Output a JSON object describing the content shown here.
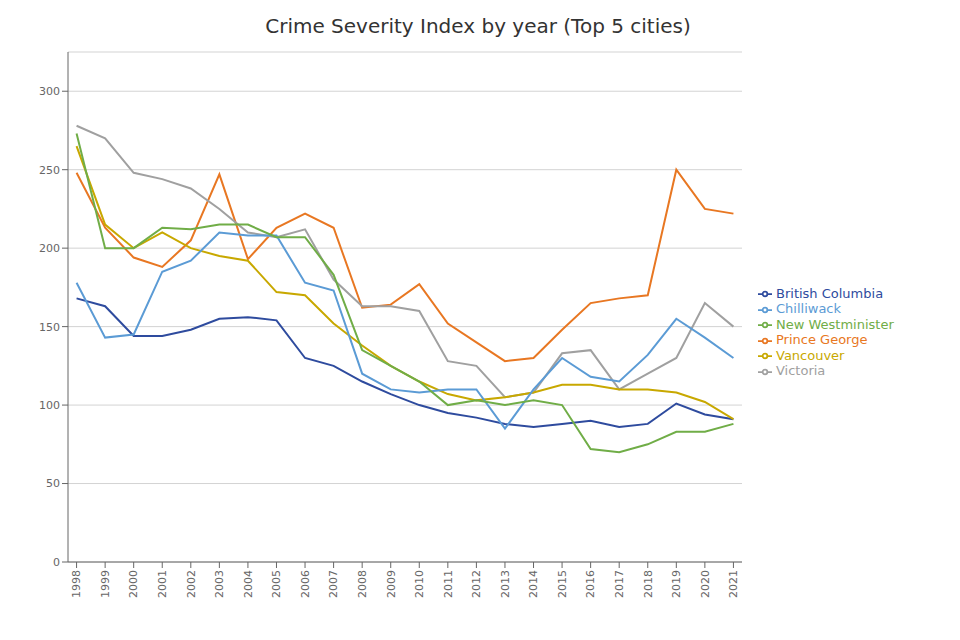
{
  "chart_data": {
    "type": "line",
    "title": "Crime Severity Index by year (Top 5 cities)",
    "x": [
      1998,
      1999,
      2000,
      2001,
      2002,
      2003,
      2004,
      2005,
      2006,
      2007,
      2008,
      2009,
      2010,
      2011,
      2012,
      2013,
      2014,
      2015,
      2016,
      2017,
      2018,
      2019,
      2020,
      2021
    ],
    "series": [
      {
        "name": "British Columbia",
        "color": "#2e4b9e",
        "values": [
          168,
          163,
          144,
          144,
          148,
          155,
          156,
          154,
          130,
          125,
          115,
          107,
          100,
          95,
          92,
          88,
          86,
          88,
          90,
          86,
          88,
          101,
          94,
          91
        ]
      },
      {
        "name": "Prince George",
        "color": "#e87722",
        "values": [
          248,
          213,
          194,
          188,
          205,
          247,
          193,
          213,
          222,
          213,
          162,
          164,
          177,
          152,
          140,
          128,
          130,
          148,
          165,
          168,
          170,
          250,
          225,
          222
        ]
      },
      {
        "name": "Victoria",
        "color": "#a0a0a0",
        "values": [
          278,
          270,
          248,
          244,
          238,
          225,
          210,
          207,
          212,
          180,
          163,
          163,
          160,
          128,
          125,
          105,
          108,
          133,
          135,
          110,
          120,
          130,
          165,
          150
        ]
      },
      {
        "name": "Vancouver",
        "color": "#c8a800",
        "values": [
          265,
          215,
          200,
          210,
          200,
          195,
          192,
          172,
          170,
          152,
          138,
          125,
          115,
          107,
          103,
          105,
          108,
          113,
          113,
          110,
          110,
          108,
          102,
          91
        ]
      },
      {
        "name": "Chilliwack",
        "color": "#5b9bd5",
        "values": [
          178,
          143,
          145,
          185,
          192,
          210,
          208,
          208,
          178,
          173,
          120,
          110,
          108,
          110,
          110,
          85,
          110,
          130,
          118,
          115,
          132,
          155,
          143,
          130
        ]
      },
      {
        "name": "New Westminister",
        "color": "#70ad47",
        "values": [
          273,
          200,
          200,
          213,
          212,
          215,
          215,
          207,
          207,
          183,
          135,
          125,
          115,
          100,
          103,
          100,
          103,
          100,
          72,
          70,
          75,
          83,
          83,
          88
        ]
      }
    ],
    "xlim": [
      1997.7,
      2021.3
    ],
    "xticks": [
      1998,
      1999,
      2000,
      2001,
      2002,
      2003,
      2004,
      2005,
      2006,
      2007,
      2008,
      2009,
      2010,
      2011,
      2012,
      2013,
      2014,
      2015,
      2016,
      2017,
      2018,
      2019,
      2020,
      2021
    ],
    "ylim": [
      0,
      325
    ],
    "yticks": [
      0,
      50,
      100,
      150,
      200,
      250,
      300
    ],
    "grid": true,
    "legend": "right"
  }
}
